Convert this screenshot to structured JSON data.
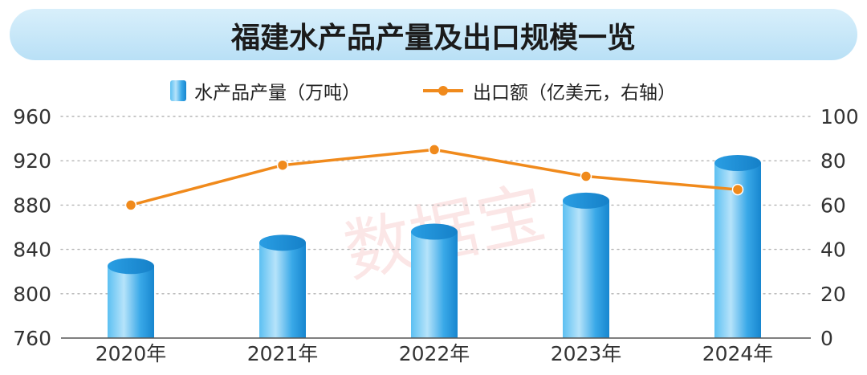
{
  "chart_data": {
    "type": "bar",
    "title": "福建水产品产量及出口规模一览",
    "categories": [
      "2020年",
      "2021年",
      "2022年",
      "2023年",
      "2024年"
    ],
    "series": [
      {
        "name": "水产品产量（万吨）",
        "type": "bar",
        "axis": "left",
        "values": [
          825,
          846,
          856,
          884,
          918
        ]
      },
      {
        "name": "出口额（亿美元，右轴）",
        "type": "line",
        "axis": "right",
        "values": [
          60,
          78,
          85,
          73,
          67
        ]
      }
    ],
    "y_left": {
      "min": 760,
      "max": 960,
      "ticks": [
        "760",
        "800",
        "840",
        "880",
        "920",
        "960"
      ]
    },
    "y_right": {
      "min": 0,
      "max": 100,
      "ticks": [
        "0",
        "20",
        "40",
        "60",
        "80",
        "100"
      ]
    },
    "grid": "dotted horizontal",
    "legend": "top-center",
    "watermark": "数据宝",
    "colors": {
      "bar": "#2aa0e4",
      "line": "#f08a1c",
      "title_band": "#c6e6f8",
      "text": "#333333",
      "grid": "#b5b5b5"
    }
  }
}
